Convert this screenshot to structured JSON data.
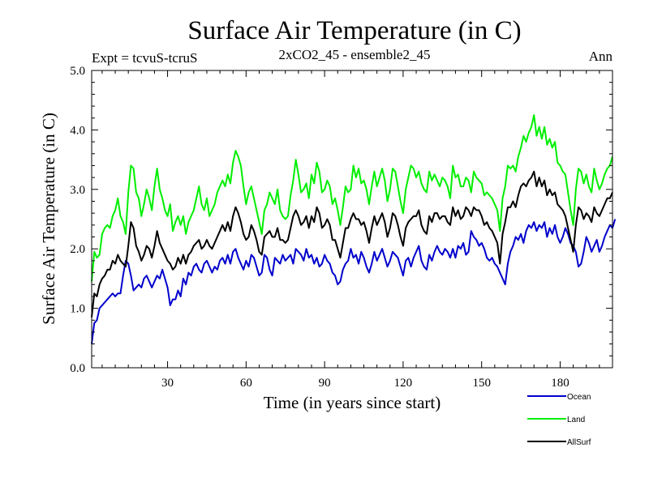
{
  "chart_data": {
    "type": "line",
    "title": "Surface Air Temperature (in C)",
    "subtitle": "2xCO2_45 - ensemble2_45",
    "left_label": "Expt = tcvuS-tcruS",
    "right_label": "Ann",
    "xlabel": "Time (in years since start)",
    "ylabel": "Surface Air Temperature (in C)",
    "xlim": [
      1,
      200
    ],
    "ylim": [
      0,
      5
    ],
    "xticks": [
      30,
      60,
      90,
      120,
      150,
      180
    ],
    "xtick_labels": [
      "30",
      "60",
      "90",
      "120",
      "150",
      "180"
    ],
    "yticks": [
      0,
      1,
      2,
      3,
      4,
      5
    ],
    "ytick_labels": [
      "0.0",
      "1.0",
      "2.0",
      "3.0",
      "4.0",
      "5.0"
    ],
    "grid": false,
    "legend_position": "bottom-right",
    "series": [
      {
        "name": "Ocean",
        "color": "#0000cc",
        "values": [
          0.4,
          0.75,
          0.8,
          1.0,
          1.05,
          1.1,
          1.15,
          1.2,
          1.25,
          1.2,
          1.25,
          1.25,
          1.55,
          1.8,
          1.75,
          1.55,
          1.3,
          1.35,
          1.4,
          1.35,
          1.5,
          1.55,
          1.45,
          1.35,
          1.45,
          1.55,
          1.5,
          1.65,
          1.5,
          1.35,
          1.05,
          1.15,
          1.15,
          1.3,
          1.2,
          1.5,
          1.4,
          1.6,
          1.55,
          1.7,
          1.75,
          1.65,
          1.6,
          1.75,
          1.8,
          1.7,
          1.6,
          1.7,
          1.65,
          1.8,
          1.85,
          1.75,
          1.9,
          1.75,
          1.95,
          2.0,
          1.85,
          1.75,
          1.65,
          1.8,
          1.7,
          1.9,
          1.85,
          1.7,
          1.55,
          1.6,
          1.9,
          1.85,
          1.65,
          1.55,
          1.85,
          1.8,
          1.75,
          1.9,
          1.8,
          1.85,
          1.9,
          1.75,
          2.0,
          1.95,
          1.9,
          1.8,
          2.0,
          1.85,
          1.9,
          1.75,
          1.85,
          1.7,
          1.75,
          1.9,
          1.8,
          1.75,
          1.6,
          1.55,
          1.4,
          1.45,
          1.65,
          1.75,
          1.8,
          2.0,
          1.85,
          1.9,
          1.75,
          1.95,
          1.85,
          1.7,
          1.6,
          1.75,
          1.95,
          1.8,
          1.9,
          2.0,
          1.85,
          1.7,
          1.8,
          1.95,
          1.9,
          1.85,
          1.7,
          1.55,
          1.8,
          1.85,
          1.7,
          1.85,
          1.95,
          2.05,
          1.8,
          1.7,
          1.65,
          1.9,
          1.8,
          1.95,
          2.05,
          1.95,
          1.9,
          2.0,
          1.95,
          1.85,
          2.0,
          1.85,
          2.05,
          2.0,
          2.1,
          1.9,
          1.95,
          2.3,
          2.2,
          2.15,
          2.05,
          2.1,
          2.0,
          1.85,
          1.8,
          1.85,
          1.75,
          1.7,
          1.6,
          1.5,
          1.4,
          1.75,
          1.95,
          2.05,
          2.2,
          2.15,
          2.25,
          2.1,
          2.3,
          2.4,
          2.35,
          2.45,
          2.3,
          2.4,
          2.35,
          2.45,
          2.2,
          2.35,
          2.25,
          2.4,
          2.2,
          2.1,
          2.2,
          2.35,
          2.25,
          2.1,
          2.05,
          1.95,
          1.7,
          1.75,
          1.95,
          2.2,
          2.1,
          1.95,
          2.05,
          2.15,
          1.95,
          2.05,
          2.2,
          2.3,
          2.4,
          2.35,
          2.5
        ]
      },
      {
        "name": "Land",
        "color": "#00ee00",
        "values": [
          1.45,
          1.95,
          1.85,
          1.9,
          2.25,
          2.35,
          2.4,
          2.35,
          2.55,
          2.65,
          2.85,
          2.55,
          2.45,
          2.25,
          2.95,
          3.4,
          3.35,
          2.95,
          2.85,
          2.55,
          2.75,
          3.0,
          2.85,
          2.65,
          3.05,
          3.35,
          3.0,
          2.85,
          2.65,
          2.55,
          2.75,
          2.3,
          2.45,
          2.55,
          2.4,
          2.55,
          2.25,
          2.45,
          2.55,
          2.65,
          2.85,
          3.05,
          2.75,
          2.65,
          2.85,
          2.55,
          2.65,
          2.75,
          2.95,
          3.05,
          3.15,
          3.05,
          3.25,
          3.1,
          3.45,
          3.65,
          3.55,
          3.4,
          3.05,
          2.75,
          2.95,
          3.05,
          2.85,
          2.65,
          2.45,
          2.25,
          2.65,
          2.75,
          2.95,
          2.85,
          2.75,
          3.0,
          2.65,
          2.55,
          2.5,
          2.55,
          2.9,
          3.15,
          3.5,
          3.25,
          2.95,
          3.0,
          3.1,
          2.85,
          3.25,
          3.1,
          3.45,
          3.3,
          2.95,
          3.0,
          3.15,
          3.05,
          2.75,
          2.85,
          2.65,
          2.4,
          2.7,
          3.05,
          2.95,
          3.0,
          3.4,
          3.2,
          3.35,
          3.1,
          3.15,
          3.0,
          2.75,
          3.05,
          3.3,
          3.05,
          3.2,
          3.35,
          3.15,
          2.8,
          3.0,
          3.35,
          3.3,
          3.05,
          2.8,
          2.6,
          3.0,
          3.2,
          3.4,
          3.35,
          3.2,
          3.3,
          3.1,
          3.0,
          2.95,
          3.3,
          3.15,
          3.25,
          3.15,
          3.05,
          3.2,
          3.15,
          3.05,
          2.85,
          3.4,
          3.2,
          3.25,
          3.05,
          3.05,
          3.2,
          3.15,
          2.95,
          3.3,
          3.2,
          3.15,
          3.1,
          2.9,
          2.95,
          2.9,
          2.85,
          2.75,
          2.65,
          2.3,
          2.85,
          3.05,
          3.4,
          3.35,
          3.4,
          3.3,
          3.55,
          3.7,
          3.9,
          3.8,
          3.95,
          4.05,
          4.25,
          3.9,
          4.05,
          3.85,
          4.05,
          3.75,
          3.85,
          3.7,
          3.8,
          3.45,
          3.4,
          3.3,
          3.25,
          2.95,
          2.65,
          2.4,
          3.0,
          3.35,
          3.3,
          3.1,
          3.25,
          3.05,
          2.95,
          3.35,
          3.15,
          3.0,
          3.1,
          3.25,
          3.35,
          3.4,
          3.55
        ]
      },
      {
        "name": "AllSurf",
        "color": "#000000",
        "values": [
          0.85,
          1.25,
          1.2,
          1.4,
          1.5,
          1.55,
          1.65,
          1.65,
          1.8,
          1.75,
          1.9,
          1.8,
          1.75,
          1.7,
          2.05,
          2.45,
          2.35,
          2.05,
          1.95,
          1.8,
          1.9,
          2.05,
          2.0,
          1.85,
          2.05,
          2.3,
          2.1,
          2.0,
          1.9,
          1.8,
          1.75,
          1.65,
          1.7,
          1.85,
          1.75,
          1.9,
          1.75,
          1.9,
          1.95,
          2.05,
          2.1,
          2.15,
          2.0,
          2.05,
          2.15,
          2.05,
          2.0,
          2.1,
          2.2,
          2.3,
          2.4,
          2.3,
          2.45,
          2.3,
          2.55,
          2.7,
          2.6,
          2.45,
          2.25,
          2.15,
          2.2,
          2.4,
          2.3,
          2.15,
          1.95,
          1.9,
          2.2,
          2.25,
          2.3,
          2.2,
          2.2,
          2.35,
          2.15,
          2.15,
          2.1,
          2.15,
          2.35,
          2.55,
          2.65,
          2.55,
          2.4,
          2.45,
          2.55,
          2.35,
          2.55,
          2.45,
          2.7,
          2.6,
          2.35,
          2.4,
          2.5,
          2.4,
          2.15,
          2.15,
          2.0,
          1.85,
          2.1,
          2.35,
          2.35,
          2.5,
          2.6,
          2.5,
          2.5,
          2.4,
          2.45,
          2.3,
          2.1,
          2.35,
          2.55,
          2.4,
          2.5,
          2.6,
          2.45,
          2.2,
          2.35,
          2.6,
          2.55,
          2.4,
          2.2,
          2.05,
          2.35,
          2.45,
          2.5,
          2.55,
          2.55,
          2.65,
          2.4,
          2.3,
          2.25,
          2.55,
          2.45,
          2.6,
          2.6,
          2.5,
          2.55,
          2.55,
          2.45,
          2.4,
          2.7,
          2.55,
          2.65,
          2.5,
          2.55,
          2.7,
          2.65,
          2.55,
          2.7,
          2.65,
          2.65,
          2.55,
          2.4,
          2.45,
          2.35,
          2.3,
          2.2,
          2.1,
          1.75,
          2.25,
          2.45,
          2.7,
          2.7,
          2.8,
          2.7,
          2.9,
          3.05,
          3.1,
          3.05,
          3.15,
          3.2,
          3.3,
          3.05,
          3.2,
          3.05,
          3.15,
          2.9,
          3.0,
          2.9,
          2.95,
          2.75,
          2.7,
          2.65,
          2.55,
          2.35,
          2.15,
          1.95,
          2.4,
          2.7,
          2.65,
          2.5,
          2.6,
          2.55,
          2.45,
          2.7,
          2.6,
          2.55,
          2.65,
          2.75,
          2.85,
          2.85,
          2.95
        ]
      }
    ]
  }
}
